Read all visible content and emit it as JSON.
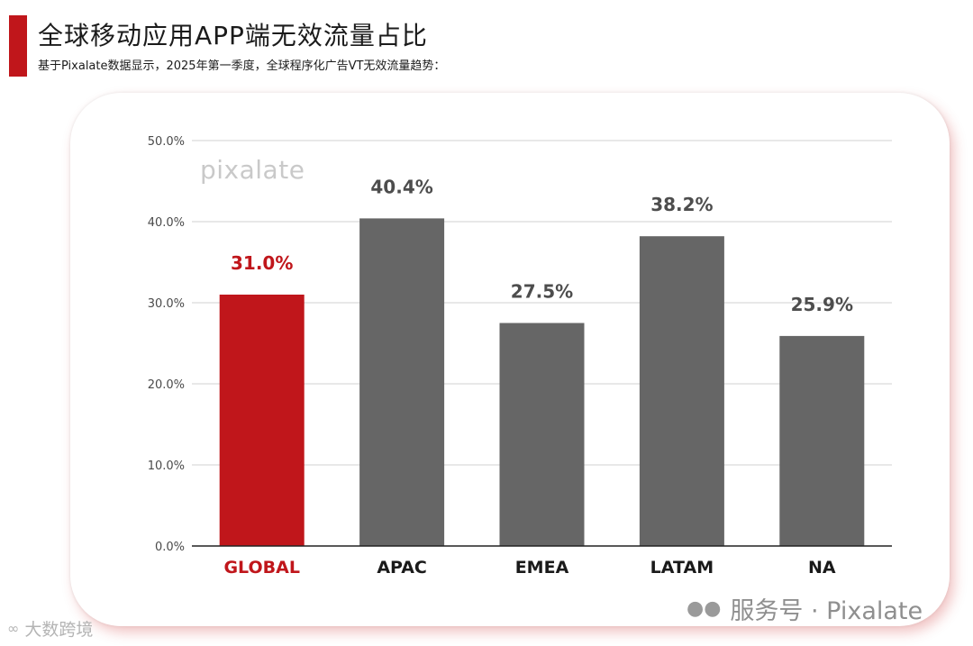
{
  "header": {
    "title": "全球移动应用APP端无效流量占比",
    "subtitle": "基于Pixalate数据显示，2025年第一季度，全球程序化广告VT无效流量趋势："
  },
  "brand": {
    "watermark": "pixalate"
  },
  "footer": {
    "wechat_icon": "wechat-icon",
    "service_label": "服务号 · Pixalate",
    "source_icon": "loop-logo-icon",
    "source_label": "大数跨境"
  },
  "colors": {
    "accent": "#c0161b",
    "bar_default": "#666666",
    "label_default": "#4d4d4d",
    "axis_line": "#222222",
    "grid": "#d0d0d0"
  },
  "chart_data": {
    "type": "bar",
    "title": "全球移动应用APP端无效流量占比",
    "categories": [
      "GLOBAL",
      "APAC",
      "EMEA",
      "LATAM",
      "NA"
    ],
    "values": [
      31.0,
      40.4,
      27.5,
      38.2,
      25.9
    ],
    "value_labels": [
      "31.0%",
      "40.4%",
      "27.5%",
      "38.2%",
      "25.9%"
    ],
    "highlight": "GLOBAL",
    "ylim": [
      0,
      50
    ],
    "yticks": [
      0,
      10,
      20,
      30,
      40,
      50
    ],
    "ytick_labels": [
      "0.0%",
      "10.0%",
      "20.0%",
      "30.0%",
      "40.0%",
      "50.0%"
    ],
    "grid": true,
    "xlabel": "",
    "ylabel": ""
  }
}
